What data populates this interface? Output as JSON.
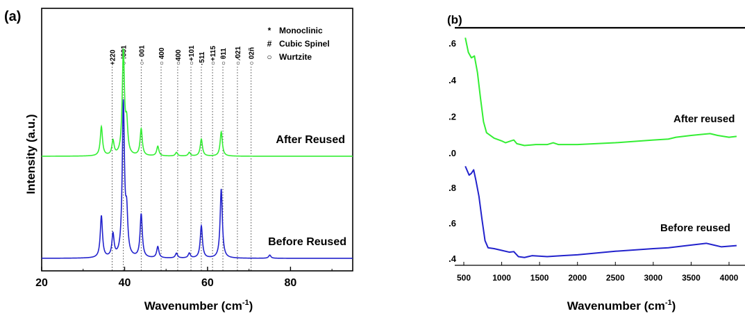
{
  "chart_data": [
    {
      "panel_label": "(a)",
      "type": "line",
      "xlabel": "Wavenumber (cm",
      "xlabel_sup": "-1",
      "xlabel_close": ")",
      "ylabel": "Intensity (a.u.)",
      "xlim": [
        20,
        95
      ],
      "xticks": [
        20,
        40,
        60,
        80
      ],
      "legend": [
        {
          "symbol": "*",
          "label": "Monoclinic"
        },
        {
          "symbol": "#",
          "label": "Cubic Spinel"
        },
        {
          "symbol": "○",
          "label": "Wurtzite"
        }
      ],
      "reference_lines": [
        {
          "x": 37.0,
          "label": "+220"
        },
        {
          "x": 39.7,
          "label": "○ !001"
        },
        {
          "x": 44.0,
          "label": "○· 001"
        },
        {
          "x": 48.8,
          "label": "○ 400"
        },
        {
          "x": 52.8,
          "label": "○400"
        },
        {
          "x": 56.0,
          "label": "○+101"
        },
        {
          "x": 58.5,
          "label": "·511"
        },
        {
          "x": 61.2,
          "label": "○+115"
        },
        {
          "x": 63.7,
          "label": "○ θ11"
        },
        {
          "x": 67.2,
          "label": "○ ⁄021"
        },
        {
          "x": 70.5,
          "label": "○ 02ñ"
        }
      ],
      "series": [
        {
          "name": "After Reused",
          "color": "#33ee33",
          "peaks": [
            [
              34.4,
              0.24
            ],
            [
              37.2,
              0.12
            ],
            [
              39.7,
              0.85
            ],
            [
              40.5,
              0.24
            ],
            [
              44.0,
              0.22
            ],
            [
              48.0,
              0.08
            ],
            [
              52.5,
              0.03
            ],
            [
              55.6,
              0.03
            ],
            [
              58.5,
              0.14
            ],
            [
              63.3,
              0.2
            ]
          ]
        },
        {
          "name": "Before Reused",
          "color": "#2222cc",
          "peaks": [
            [
              34.4,
              0.26
            ],
            [
              37.2,
              0.14
            ],
            [
              39.7,
              0.95
            ],
            [
              40.5,
              0.24
            ],
            [
              44.0,
              0.27
            ],
            [
              48.0,
              0.07
            ],
            [
              52.5,
              0.03
            ],
            [
              55.6,
              0.03
            ],
            [
              58.5,
              0.2
            ],
            [
              63.3,
              0.43
            ],
            [
              75.0,
              0.02
            ]
          ]
        }
      ]
    },
    {
      "panel_label": "(b)",
      "type": "line",
      "xlabel": "Wavenumber (cm",
      "xlabel_sup": "-1",
      "xlabel_close": ")",
      "xlim": [
        480,
        4100
      ],
      "xticks": [
        500,
        1000,
        1500,
        2000,
        2500,
        3000,
        3500,
        4000
      ],
      "yticks_upper": [
        ".6",
        ".4",
        ".2",
        ".0"
      ],
      "yticks_lower": [
        ".8",
        ".6",
        ".4"
      ],
      "series": [
        {
          "name": "After reused",
          "color": "#33ee33",
          "values": [
            [
              520,
              0.63
            ],
            [
              560,
              0.55
            ],
            [
              600,
              0.52
            ],
            [
              640,
              0.53
            ],
            [
              680,
              0.44
            ],
            [
              720,
              0.3
            ],
            [
              760,
              0.17
            ],
            [
              800,
              0.11
            ],
            [
              900,
              0.08
            ],
            [
              1000,
              0.065
            ],
            [
              1050,
              0.055
            ],
            [
              1120,
              0.065
            ],
            [
              1160,
              0.07
            ],
            [
              1200,
              0.05
            ],
            [
              1300,
              0.04
            ],
            [
              1450,
              0.045
            ],
            [
              1600,
              0.045
            ],
            [
              1680,
              0.055
            ],
            [
              1750,
              0.045
            ],
            [
              2000,
              0.045
            ],
            [
              2500,
              0.055
            ],
            [
              3000,
              0.07
            ],
            [
              3200,
              0.075
            ],
            [
              3300,
              0.085
            ],
            [
              3500,
              0.095
            ],
            [
              3750,
              0.105
            ],
            [
              3850,
              0.095
            ],
            [
              4000,
              0.085
            ],
            [
              4100,
              0.09
            ]
          ]
        },
        {
          "name": "Before reused",
          "color": "#2222cc",
          "values": [
            [
              520,
              0.92
            ],
            [
              570,
              0.87
            ],
            [
              600,
              0.88
            ],
            [
              630,
              0.9
            ],
            [
              660,
              0.84
            ],
            [
              700,
              0.75
            ],
            [
              740,
              0.62
            ],
            [
              780,
              0.5
            ],
            [
              820,
              0.46
            ],
            [
              900,
              0.455
            ],
            [
              1000,
              0.445
            ],
            [
              1100,
              0.435
            ],
            [
              1160,
              0.438
            ],
            [
              1220,
              0.41
            ],
            [
              1300,
              0.405
            ],
            [
              1400,
              0.415
            ],
            [
              1600,
              0.41
            ],
            [
              1800,
              0.415
            ],
            [
              2000,
              0.42
            ],
            [
              2500,
              0.44
            ],
            [
              3000,
              0.455
            ],
            [
              3200,
              0.46
            ],
            [
              3500,
              0.475
            ],
            [
              3700,
              0.485
            ],
            [
              3800,
              0.475
            ],
            [
              3900,
              0.465
            ],
            [
              4100,
              0.472
            ]
          ]
        }
      ]
    }
  ]
}
